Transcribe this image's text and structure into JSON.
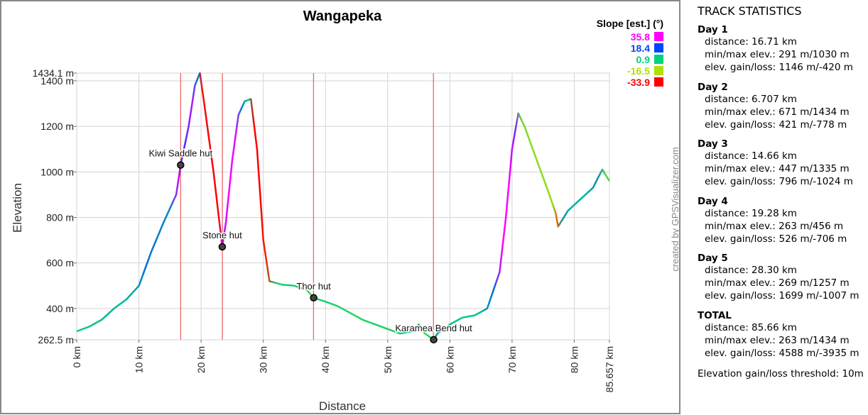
{
  "chart_data": {
    "type": "line",
    "title": "Wangapeka",
    "x_label": "Distance",
    "y_label": "Elevation",
    "watermark": "created by GPSVisualizer.com",
    "x": [
      0,
      2,
      4,
      6,
      8,
      10,
      12,
      14,
      16,
      16.71,
      18,
      19,
      19.8,
      20.5,
      22,
      23.4,
      24,
      25,
      26,
      27,
      28,
      29,
      30,
      31,
      33,
      35,
      37,
      38.1,
      40,
      42,
      44,
      46,
      48,
      50,
      52,
      54,
      55,
      56,
      57.4,
      58,
      60,
      62,
      64,
      66,
      68,
      69,
      70,
      71,
      72,
      74,
      76,
      77,
      77.4,
      79,
      81,
      83,
      84.5,
      85.657
    ],
    "values": [
      300,
      320,
      350,
      400,
      440,
      500,
      650,
      780,
      900,
      1030,
      1200,
      1380,
      1434,
      1300,
      1000,
      671,
      780,
      1050,
      1250,
      1310,
      1320,
      1100,
      700,
      520,
      505,
      500,
      480,
      447,
      430,
      410,
      380,
      350,
      330,
      310,
      290,
      300,
      330,
      290,
      263,
      290,
      330,
      360,
      370,
      400,
      560,
      800,
      1100,
      1257,
      1200,
      1050,
      900,
      820,
      760,
      830,
      880,
      930,
      1010,
      960
    ],
    "xlim": [
      0,
      85.657
    ],
    "ylim": [
      262.5,
      1434.1
    ],
    "xticks": [
      {
        "value": 0,
        "label": "0 km"
      },
      {
        "value": 10,
        "label": "10 km"
      },
      {
        "value": 20,
        "label": "20 km"
      },
      {
        "value": 30,
        "label": "30 km"
      },
      {
        "value": 40,
        "label": "40 km"
      },
      {
        "value": 50,
        "label": "50 km"
      },
      {
        "value": 60,
        "label": "60 km"
      },
      {
        "value": 70,
        "label": "70 km"
      },
      {
        "value": 80,
        "label": "80 km"
      },
      {
        "value": 85.657,
        "label": "85.657 km"
      }
    ],
    "yticks": [
      {
        "value": 262.5,
        "label": "262.5 m"
      },
      {
        "value": 400,
        "label": "400 m"
      },
      {
        "value": 600,
        "label": "600 m"
      },
      {
        "value": 800,
        "label": "800 m"
      },
      {
        "value": 1000,
        "label": "1000 m"
      },
      {
        "value": 1200,
        "label": "1200 m"
      },
      {
        "value": 1400,
        "label": "1400 m"
      },
      {
        "value": 1434.1,
        "label": "1434.1 m"
      }
    ],
    "grid": true,
    "day_markers": [
      16.71,
      23.42,
      38.08,
      57.36
    ],
    "day_marker_color": "#ee6666",
    "waypoints": [
      {
        "name": "Kiwi Saddle hut",
        "x": 16.71,
        "y": 1030
      },
      {
        "name": "Stone hut",
        "x": 23.4,
        "y": 671
      },
      {
        "name": "Thor hut",
        "x": 38.1,
        "y": 447
      },
      {
        "name": "Karamea Bend hut",
        "x": 57.4,
        "y": 263
      }
    ],
    "slope_legend": {
      "title": "Slope [est.] (°)",
      "values": [
        35.8,
        18.4,
        0.9,
        -16.5,
        -33.9
      ],
      "colors": [
        "#ff00ff",
        "#0044ff",
        "#00d080",
        "#b0e000",
        "#ff0000"
      ]
    }
  },
  "stats": {
    "title": "TRACK STATISTICS",
    "days": [
      {
        "name": "Day 1",
        "lines": [
          "distance: 16.71 km",
          "min/max elev.: 291 m/1030 m",
          "elev. gain/loss: 1146 m/-420 m"
        ]
      },
      {
        "name": "Day 2",
        "lines": [
          "distance: 6.707 km",
          "min/max elev.: 671 m/1434 m",
          "elev. gain/loss: 421 m/-778 m"
        ]
      },
      {
        "name": "Day 3",
        "lines": [
          "distance: 14.66 km",
          "min/max elev.: 447 m/1335 m",
          "elev. gain/loss: 796 m/-1024 m"
        ]
      },
      {
        "name": "Day 4",
        "lines": [
          "distance: 19.28 km",
          "min/max elev.: 263 m/456 m",
          "elev. gain/loss: 526 m/-706 m"
        ]
      },
      {
        "name": "Day 5",
        "lines": [
          "distance: 28.30 km",
          "min/max elev.: 269 m/1257 m",
          "elev. gain/loss: 1699 m/-1007 m"
        ]
      },
      {
        "name": "TOTAL",
        "lines": [
          "distance: 85.66 km",
          "min/max elev.: 263 m/1434 m",
          "elev. gain/loss: 4588 m/-3935 m"
        ]
      }
    ],
    "footer": "Elevation gain/loss threshold: 10m"
  }
}
